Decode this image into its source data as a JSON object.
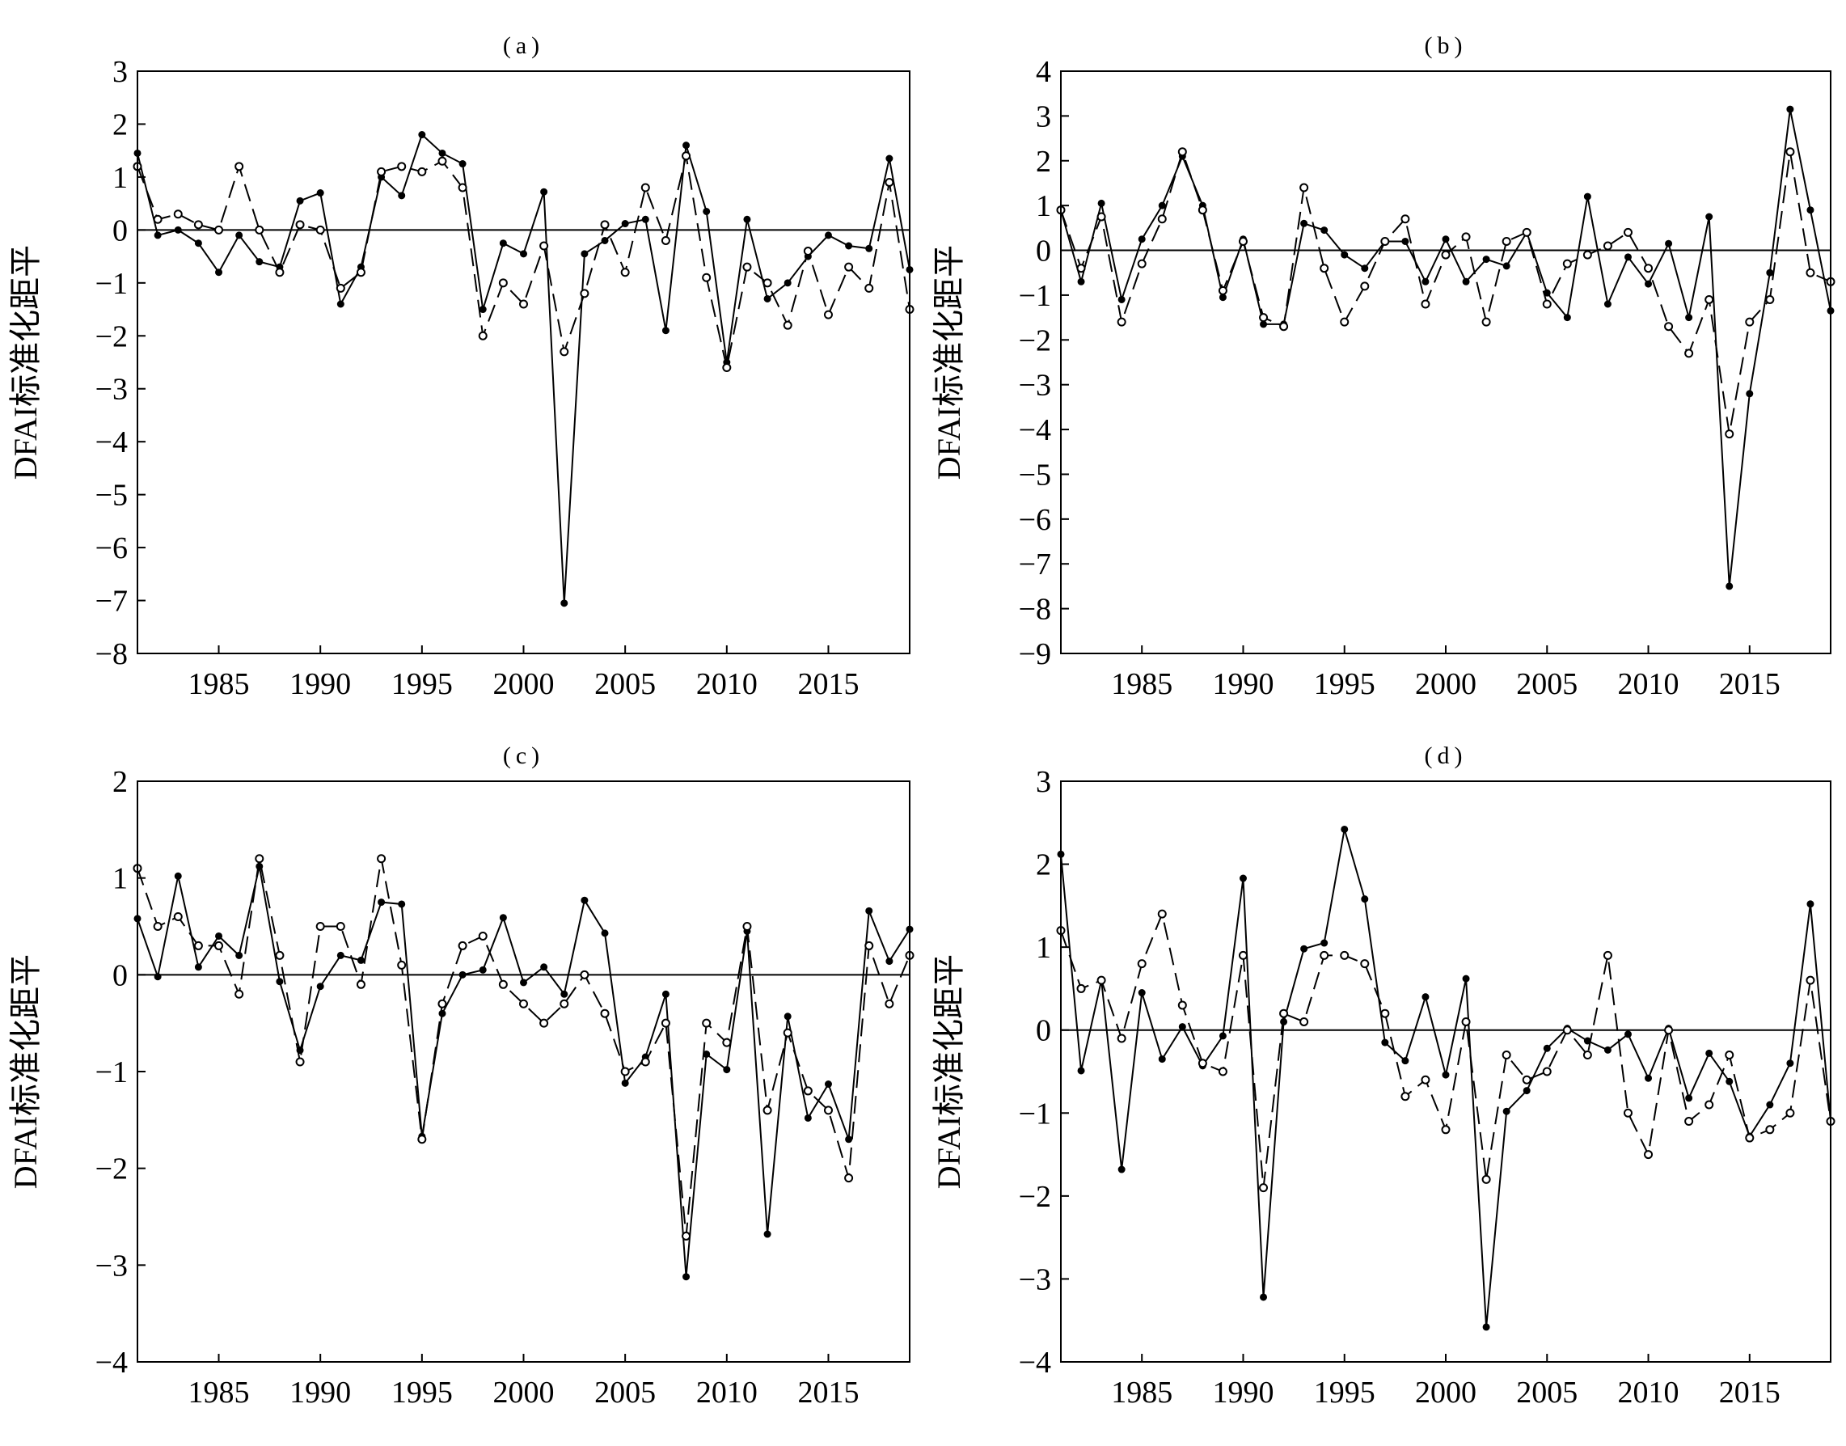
{
  "chart_data": [
    {
      "type": "line",
      "title": "(a)",
      "ylabel": "DFAI标准化距平",
      "ylim": [
        -8,
        3
      ],
      "yticks": [
        3,
        2,
        1,
        0,
        -1,
        -2,
        -3,
        -4,
        -5,
        -6,
        -7,
        -8
      ],
      "xlim": [
        1981,
        2019
      ],
      "xticks": [
        1985,
        1990,
        1995,
        2000,
        2005,
        2010,
        2015
      ],
      "reference_line": 0,
      "x": [
        1981,
        1982,
        1983,
        1984,
        1985,
        1986,
        1987,
        1988,
        1989,
        1990,
        1991,
        1992,
        1993,
        1994,
        1995,
        1996,
        1997,
        1998,
        1999,
        2000,
        2001,
        2002,
        2003,
        2004,
        2005,
        2006,
        2007,
        2008,
        2009,
        2010,
        2011,
        2012,
        2013,
        2014,
        2015,
        2016,
        2017,
        2018,
        2019
      ],
      "series": [
        {
          "style": "solid-filled",
          "values": [
            1.45,
            -0.1,
            0.0,
            -0.25,
            -0.8,
            -0.1,
            -0.6,
            -0.7,
            0.55,
            0.7,
            -1.4,
            -0.7,
            1.0,
            0.65,
            1.8,
            1.45,
            1.25,
            -1.5,
            -0.25,
            -0.45,
            0.72,
            -7.05,
            -0.45,
            -0.2,
            0.12,
            0.2,
            -1.9,
            1.6,
            0.35,
            -2.5,
            0.2,
            -1.3,
            -1.0,
            -0.5,
            -0.1,
            -0.3,
            -0.35,
            1.35,
            -0.75
          ]
        },
        {
          "style": "dashed-open",
          "values": [
            1.2,
            0.2,
            0.3,
            0.1,
            0.0,
            1.2,
            0.0,
            -0.8,
            0.1,
            0.0,
            -1.1,
            -0.8,
            1.1,
            1.2,
            1.1,
            1.3,
            0.8,
            -2.0,
            -1.0,
            -1.4,
            -0.3,
            -2.3,
            -1.2,
            0.1,
            -0.8,
            0.8,
            -0.2,
            1.4,
            -0.9,
            -2.6,
            -0.7,
            -1.0,
            -1.8,
            -0.4,
            -1.6,
            -0.7,
            -1.1,
            0.9,
            -1.5
          ]
        }
      ]
    },
    {
      "type": "line",
      "title": "(b)",
      "ylabel": "DFAI标准化距平",
      "ylim": [
        -9,
        4
      ],
      "yticks": [
        4,
        3,
        2,
        1,
        0,
        -1,
        -2,
        -3,
        -4,
        -5,
        -6,
        -7,
        -8,
        -9
      ],
      "xlim": [
        1981,
        2019
      ],
      "xticks": [
        1985,
        1990,
        1995,
        2000,
        2005,
        2010,
        2015
      ],
      "reference_line": 0,
      "x": [
        1981,
        1982,
        1983,
        1984,
        1985,
        1986,
        1987,
        1988,
        1989,
        1990,
        1991,
        1992,
        1993,
        1994,
        1995,
        1996,
        1997,
        1998,
        1999,
        2000,
        2001,
        2002,
        2003,
        2004,
        2005,
        2006,
        2007,
        2008,
        2009,
        2010,
        2011,
        2012,
        2013,
        2014,
        2015,
        2016,
        2017,
        2018,
        2019
      ],
      "series": [
        {
          "style": "solid-filled",
          "values": [
            0.9,
            -0.7,
            1.05,
            -1.1,
            0.25,
            1.0,
            2.1,
            1.0,
            -1.05,
            0.25,
            -1.65,
            -1.65,
            0.6,
            0.45,
            -0.1,
            -0.4,
            0.2,
            0.2,
            -0.7,
            0.25,
            -0.7,
            -0.2,
            -0.35,
            0.4,
            -0.95,
            -1.5,
            1.2,
            -1.2,
            -0.15,
            -0.75,
            0.15,
            -1.5,
            0.75,
            -7.5,
            -3.2,
            -0.5,
            3.15,
            0.9,
            -1.35
          ]
        },
        {
          "style": "dashed-open",
          "values": [
            0.9,
            -0.4,
            0.75,
            -1.6,
            -0.3,
            0.7,
            2.2,
            0.9,
            -0.9,
            0.2,
            -1.5,
            -1.7,
            1.4,
            -0.4,
            -1.6,
            -0.8,
            0.2,
            0.7,
            -1.2,
            -0.1,
            0.3,
            -1.6,
            0.2,
            0.4,
            -1.2,
            -0.3,
            -0.1,
            0.1,
            0.4,
            -0.4,
            -1.7,
            -2.3,
            -1.1,
            -4.1,
            -1.6,
            -1.1,
            2.2,
            -0.5,
            -0.7
          ]
        }
      ]
    },
    {
      "type": "line",
      "title": "(c)",
      "ylabel": "DFAI标准化距平",
      "ylim": [
        -4,
        2
      ],
      "yticks": [
        2,
        1,
        0,
        -1,
        -2,
        -3,
        -4
      ],
      "xlim": [
        1981,
        2019
      ],
      "xticks": [
        1985,
        1990,
        1995,
        2000,
        2005,
        2010,
        2015
      ],
      "reference_line": 0,
      "x": [
        1981,
        1982,
        1983,
        1984,
        1985,
        1986,
        1987,
        1988,
        1989,
        1990,
        1991,
        1992,
        1993,
        1994,
        1995,
        1996,
        1997,
        1998,
        1999,
        2000,
        2001,
        2002,
        2003,
        2004,
        2005,
        2006,
        2007,
        2008,
        2009,
        2010,
        2011,
        2012,
        2013,
        2014,
        2015,
        2016,
        2017,
        2018,
        2019
      ],
      "series": [
        {
          "style": "solid-filled",
          "values": [
            0.58,
            -0.02,
            1.02,
            0.08,
            0.4,
            0.2,
            1.12,
            -0.07,
            -0.78,
            -0.12,
            0.2,
            0.15,
            0.75,
            0.73,
            -1.67,
            -0.4,
            0.0,
            0.05,
            0.59,
            -0.08,
            0.08,
            -0.2,
            0.77,
            0.43,
            -1.12,
            -0.85,
            -0.2,
            -3.12,
            -0.82,
            -0.98,
            0.45,
            -2.68,
            -0.43,
            -1.48,
            -1.13,
            -1.7,
            0.66,
            0.14,
            0.47
          ]
        },
        {
          "style": "dashed-open",
          "values": [
            1.1,
            0.5,
            0.6,
            0.3,
            0.3,
            -0.2,
            1.2,
            0.2,
            -0.9,
            0.5,
            0.5,
            -0.1,
            1.2,
            0.1,
            -1.7,
            -0.3,
            0.3,
            0.4,
            -0.1,
            -0.3,
            -0.5,
            -0.3,
            0.0,
            -0.4,
            -1.0,
            -0.9,
            -0.5,
            -2.7,
            -0.5,
            -0.7,
            0.5,
            -1.4,
            -0.6,
            -1.2,
            -1.4,
            -2.1,
            0.3,
            -0.3,
            0.2
          ]
        }
      ]
    },
    {
      "type": "line",
      "title": "(d)",
      "ylabel": "DFAI标准化距平",
      "ylim": [
        -4,
        3
      ],
      "yticks": [
        3,
        2,
        1,
        0,
        -1,
        -2,
        -3,
        -4
      ],
      "xlim": [
        1981,
        2019
      ],
      "xticks": [
        1985,
        1990,
        1995,
        2000,
        2005,
        2010,
        2015
      ],
      "reference_line": 0,
      "x": [
        1981,
        1982,
        1983,
        1984,
        1985,
        1986,
        1987,
        1988,
        1989,
        1990,
        1991,
        1992,
        1993,
        1994,
        1995,
        1996,
        1997,
        1998,
        1999,
        2000,
        2001,
        2002,
        2003,
        2004,
        2005,
        2006,
        2007,
        2008,
        2009,
        2010,
        2011,
        2012,
        2013,
        2014,
        2015,
        2016,
        2017,
        2018,
        2019
      ],
      "series": [
        {
          "style": "solid-filled",
          "values": [
            2.12,
            -0.49,
            0.6,
            -1.68,
            0.45,
            -0.35,
            0.04,
            -0.43,
            -0.07,
            1.83,
            -3.22,
            0.1,
            0.98,
            1.05,
            2.42,
            1.58,
            -0.15,
            -0.37,
            0.4,
            -0.54,
            0.62,
            -3.58,
            -0.98,
            -0.73,
            -0.22,
            0.02,
            -0.13,
            -0.24,
            -0.05,
            -0.58,
            0.02,
            -0.82,
            -0.28,
            -0.62,
            -1.28,
            -0.9,
            -0.4,
            1.52,
            -1.1
          ]
        },
        {
          "style": "dashed-open",
          "values": [
            1.2,
            0.5,
            0.6,
            -0.1,
            0.8,
            1.4,
            0.3,
            -0.4,
            -0.5,
            0.9,
            -1.9,
            0.2,
            0.1,
            0.9,
            0.9,
            0.8,
            0.2,
            -0.8,
            -0.6,
            -1.2,
            0.1,
            -1.8,
            -0.3,
            -0.6,
            -0.5,
            0.0,
            -0.3,
            0.9,
            -1.0,
            -1.5,
            0.0,
            -1.1,
            -0.9,
            -0.3,
            -1.3,
            -1.2,
            -1.0,
            0.6,
            -1.1
          ]
        }
      ]
    }
  ]
}
